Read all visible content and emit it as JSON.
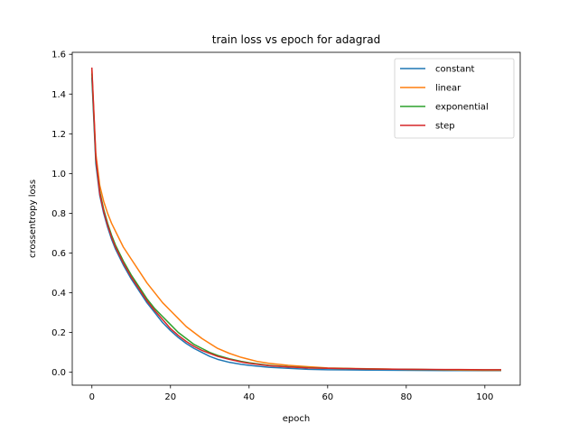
{
  "chart_data": {
    "type": "line",
    "title": "train loss vs epoch for adagrad",
    "xlabel": "epoch",
    "ylabel": "crossentropy loss",
    "xlim": [
      -5,
      109
    ],
    "ylim": [
      -0.065,
      1.61
    ],
    "xticks": [
      0,
      20,
      40,
      60,
      80,
      100
    ],
    "yticks": [
      0.0,
      0.2,
      0.4,
      0.6,
      0.8,
      1.0,
      1.2,
      1.4,
      1.6
    ],
    "xtick_labels": [
      "0",
      "20",
      "40",
      "60",
      "80",
      "100"
    ],
    "ytick_labels": [
      "0.0",
      "0.2",
      "0.4",
      "0.6",
      "0.8",
      "1.0",
      "1.2",
      "1.4",
      "1.6"
    ],
    "grid": false,
    "legend_position": "top-right",
    "series": [
      {
        "name": "constant",
        "color": "#1f77b4",
        "x": [
          0,
          1,
          2,
          3,
          4,
          5,
          6,
          8,
          10,
          12,
          14,
          16,
          18,
          20,
          22,
          24,
          26,
          28,
          30,
          32,
          35,
          38,
          40,
          45,
          50,
          55,
          60,
          70,
          80,
          90,
          100,
          104
        ],
        "y": [
          1.48,
          1.05,
          0.89,
          0.8,
          0.73,
          0.67,
          0.62,
          0.54,
          0.47,
          0.41,
          0.35,
          0.3,
          0.25,
          0.21,
          0.175,
          0.145,
          0.12,
          0.1,
          0.08,
          0.065,
          0.05,
          0.04,
          0.035,
          0.025,
          0.02,
          0.015,
          0.013,
          0.011,
          0.01,
          0.009,
          0.008,
          0.008
        ]
      },
      {
        "name": "linear",
        "color": "#ff7f0e",
        "x": [
          0,
          1,
          2,
          3,
          4,
          5,
          6,
          8,
          10,
          12,
          14,
          16,
          18,
          20,
          22,
          24,
          26,
          28,
          30,
          32,
          35,
          38,
          40,
          42,
          45,
          50,
          55,
          60,
          70,
          80,
          90,
          100,
          104
        ],
        "y": [
          1.52,
          1.1,
          0.94,
          0.86,
          0.8,
          0.75,
          0.71,
          0.63,
          0.57,
          0.51,
          0.45,
          0.4,
          0.35,
          0.31,
          0.27,
          0.23,
          0.2,
          0.17,
          0.145,
          0.12,
          0.095,
          0.075,
          0.065,
          0.055,
          0.045,
          0.035,
          0.028,
          0.022,
          0.018,
          0.015,
          0.012,
          0.01,
          0.01
        ]
      },
      {
        "name": "exponential",
        "color": "#2ca02c",
        "x": [
          0,
          1,
          2,
          3,
          4,
          5,
          6,
          8,
          10,
          12,
          14,
          16,
          18,
          20,
          22,
          24,
          26,
          28,
          30,
          32,
          35,
          38,
          40,
          45,
          50,
          55,
          60,
          70,
          80,
          90,
          100,
          104
        ],
        "y": [
          1.5,
          1.07,
          0.91,
          0.82,
          0.75,
          0.69,
          0.64,
          0.56,
          0.49,
          0.43,
          0.37,
          0.32,
          0.28,
          0.24,
          0.2,
          0.17,
          0.14,
          0.12,
          0.1,
          0.085,
          0.068,
          0.055,
          0.048,
          0.035,
          0.028,
          0.023,
          0.02,
          0.017,
          0.015,
          0.013,
          0.012,
          0.012
        ]
      },
      {
        "name": "step",
        "color": "#d62728",
        "x": [
          0,
          1,
          2,
          3,
          4,
          5,
          6,
          8,
          10,
          12,
          14,
          16,
          18,
          20,
          22,
          24,
          26,
          28,
          30,
          32,
          35,
          38,
          40,
          45,
          50,
          55,
          60,
          70,
          80,
          90,
          100,
          104
        ],
        "y": [
          1.53,
          1.08,
          0.9,
          0.81,
          0.74,
          0.68,
          0.63,
          0.55,
          0.48,
          0.42,
          0.36,
          0.31,
          0.265,
          0.22,
          0.185,
          0.155,
          0.13,
          0.11,
          0.095,
          0.08,
          0.065,
          0.052,
          0.045,
          0.033,
          0.027,
          0.022,
          0.02,
          0.017,
          0.015,
          0.014,
          0.013,
          0.013
        ]
      }
    ]
  }
}
